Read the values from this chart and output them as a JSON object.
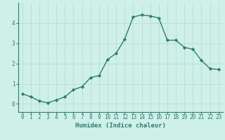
{
  "xlabel": "Humidex (Indice chaleur)",
  "x": [
    0,
    1,
    2,
    3,
    4,
    5,
    6,
    7,
    8,
    9,
    10,
    11,
    12,
    13,
    14,
    15,
    16,
    17,
    18,
    19,
    20,
    21,
    22,
    23
  ],
  "y": [
    0.5,
    0.35,
    0.15,
    0.05,
    0.2,
    0.35,
    0.7,
    0.85,
    1.3,
    1.4,
    2.2,
    2.5,
    3.2,
    4.3,
    4.4,
    4.35,
    4.25,
    3.15,
    3.15,
    2.8,
    2.7,
    2.15,
    1.75,
    1.7
  ],
  "line_color": "#2e7d6e",
  "marker": "D",
  "marker_size": 2.2,
  "bg_color": "#cef0e8",
  "grid_color_major": "#b8ddd6",
  "grid_color_minor": "#d4ede8",
  "ylim": [
    -0.4,
    5.0
  ],
  "xlim": [
    -0.5,
    23.5
  ],
  "yticks": [
    0,
    1,
    2,
    3,
    4
  ],
  "xticks": [
    0,
    1,
    2,
    3,
    4,
    5,
    6,
    7,
    8,
    9,
    10,
    11,
    12,
    13,
    14,
    15,
    16,
    17,
    18,
    19,
    20,
    21,
    22,
    23
  ],
  "tick_label_size": 5.5,
  "xlabel_fontsize": 6.5,
  "line_width": 1.0
}
